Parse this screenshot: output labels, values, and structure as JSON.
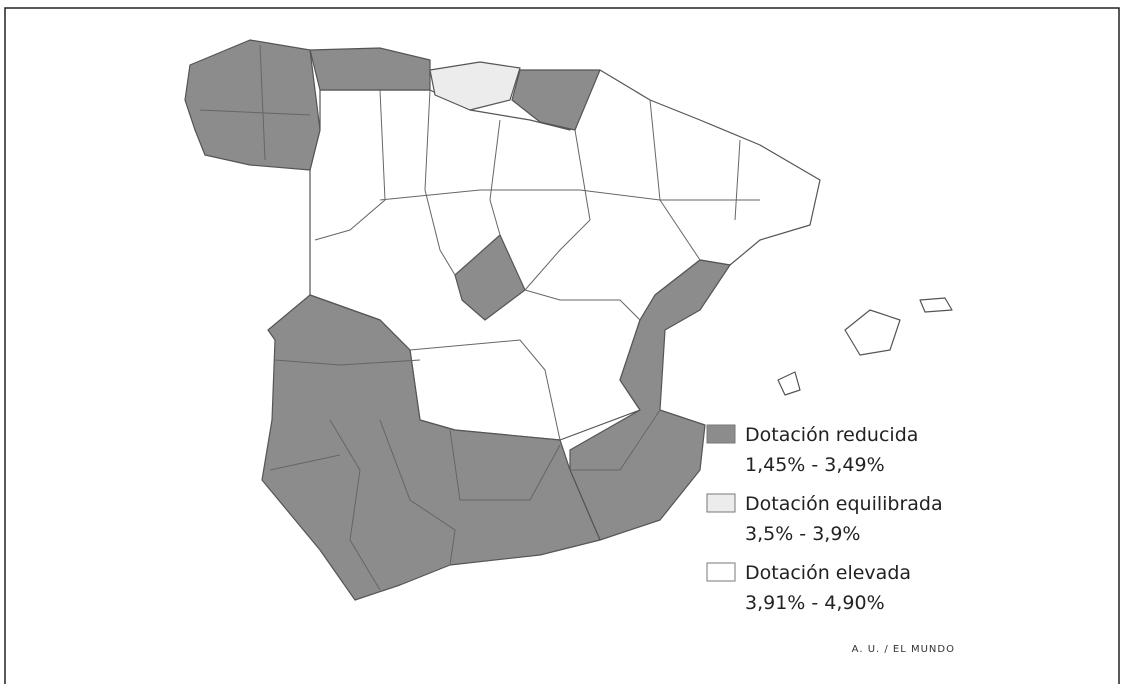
{
  "legend": [
    {
      "label": "Dotación reducida",
      "range": "1,45% - 3,49%",
      "color": "#8c8c8c"
    },
    {
      "label": "Dotación equilibrada",
      "range": "3,5% - 3,9%",
      "color": "#ececec"
    },
    {
      "label": "Dotación elevada",
      "range": "3,91% - 4,90%",
      "color": "#ffffff"
    }
  ],
  "credit": "A. U. / EL MUNDO"
}
